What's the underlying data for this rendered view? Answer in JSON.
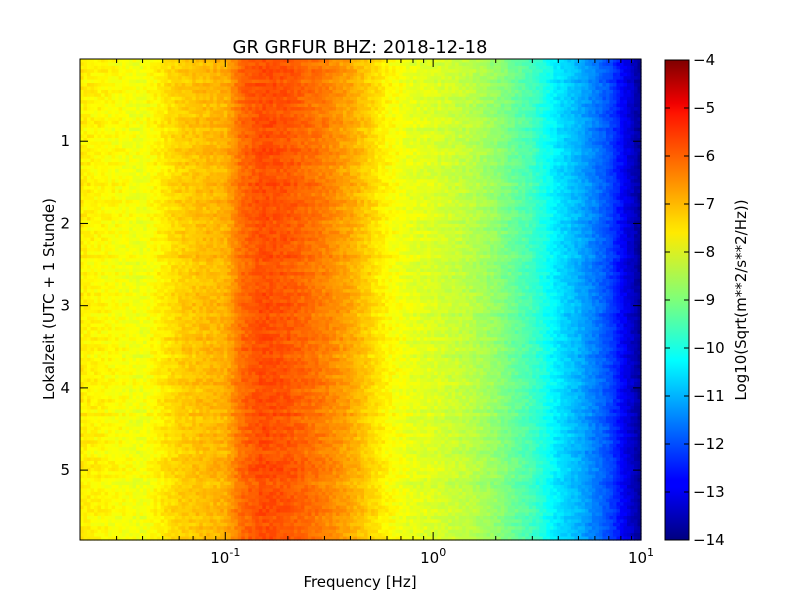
{
  "chart_data": {
    "type": "heatmap",
    "title": "GR GRFUR BHZ: 2018-12-18",
    "xlabel": "Frequency [Hz]",
    "ylabel": "Lokalzeit (UTC + 1 Stunde)",
    "colorbar_label": "Log10(Sqrt(m**2/s**2/Hz))",
    "x_scale": "log",
    "xlim": [
      0.02,
      10
    ],
    "ylim": [
      5.85,
      0
    ],
    "clim": [
      -14,
      -4
    ],
    "colormap": "jet",
    "x_ticks": [
      {
        "value": 0.1,
        "base": "10",
        "exp": "-1"
      },
      {
        "value": 1,
        "base": "10",
        "exp": "0"
      },
      {
        "value": 10,
        "base": "10",
        "exp": "1"
      }
    ],
    "y_ticks": [
      {
        "value": 1,
        "label": "1"
      },
      {
        "value": 2,
        "label": "2"
      },
      {
        "value": 3,
        "label": "3"
      },
      {
        "value": 4,
        "label": "4"
      },
      {
        "value": 5,
        "label": "5"
      }
    ],
    "colorbar_ticks": [
      {
        "value": -4,
        "label": "−4"
      },
      {
        "value": -5,
        "label": "−5"
      },
      {
        "value": -6,
        "label": "−6"
      },
      {
        "value": -7,
        "label": "−7"
      },
      {
        "value": -8,
        "label": "−8"
      },
      {
        "value": -9,
        "label": "−9"
      },
      {
        "value": -10,
        "label": "−10"
      },
      {
        "value": -11,
        "label": "−11"
      },
      {
        "value": -12,
        "label": "−12"
      },
      {
        "value": -13,
        "label": "−13"
      },
      {
        "value": -14,
        "label": "−14"
      }
    ],
    "spectrum_profile": [
      {
        "freq": 0.02,
        "value": -7.6
      },
      {
        "freq": 0.04,
        "value": -7.9
      },
      {
        "freq": 0.06,
        "value": -7.3
      },
      {
        "freq": 0.08,
        "value": -7.1
      },
      {
        "freq": 0.1,
        "value": -7.0
      },
      {
        "freq": 0.12,
        "value": -6.3
      },
      {
        "freq": 0.15,
        "value": -6.0
      },
      {
        "freq": 0.2,
        "value": -6.1
      },
      {
        "freq": 0.3,
        "value": -6.5
      },
      {
        "freq": 0.4,
        "value": -6.9
      },
      {
        "freq": 0.6,
        "value": -7.7
      },
      {
        "freq": 0.8,
        "value": -8.0
      },
      {
        "freq": 1.0,
        "value": -8.1
      },
      {
        "freq": 1.5,
        "value": -8.4
      },
      {
        "freq": 2.0,
        "value": -8.8
      },
      {
        "freq": 3.0,
        "value": -9.6
      },
      {
        "freq": 4.0,
        "value": -10.5
      },
      {
        "freq": 5.0,
        "value": -11.0
      },
      {
        "freq": 7.0,
        "value": -12.0
      },
      {
        "freq": 8.5,
        "value": -13.0
      },
      {
        "freq": 10.0,
        "value": -13.8
      }
    ]
  }
}
